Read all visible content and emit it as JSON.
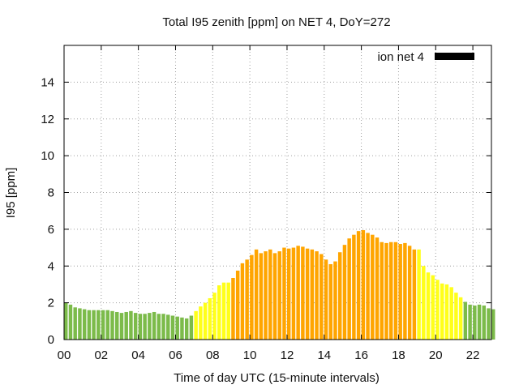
{
  "chart_data": {
    "type": "bar",
    "title": "Total I95 zenith [ppm] on NET 4, DoY=272",
    "xlabel": "Time of day UTC (15-minute intervals)",
    "ylabel": "I95 [ppm]",
    "legend": {
      "label": "ion net 4",
      "color": "#000000",
      "placement": "top-right"
    },
    "xlim": [
      0,
      23
    ],
    "ylim": [
      0,
      16
    ],
    "xtick_labels": [
      "00",
      "02",
      "04",
      "06",
      "08",
      "10",
      "12",
      "14",
      "16",
      "18",
      "20",
      "22"
    ],
    "xtick_values": [
      0,
      2,
      4,
      6,
      8,
      10,
      12,
      14,
      16,
      18,
      20,
      22
    ],
    "ytick_labels": [
      "0",
      "2",
      "4",
      "6",
      "8",
      "10",
      "12",
      "14"
    ],
    "ytick_values": [
      0,
      2,
      4,
      6,
      8,
      10,
      12,
      14
    ],
    "grid": true,
    "bar_interval_hours": 0.25,
    "level_colors": {
      "low": "#7cbb4a",
      "medium": "#ffff1a",
      "high": "#ffa500"
    },
    "levels": [
      "low",
      "low",
      "low",
      "low",
      "low",
      "low",
      "low",
      "low",
      "low",
      "low",
      "low",
      "low",
      "low",
      "low",
      "low",
      "low",
      "low",
      "low",
      "low",
      "low",
      "low",
      "low",
      "low",
      "low",
      "low",
      "low",
      "low",
      "low",
      "medium",
      "medium",
      "medium",
      "medium",
      "medium",
      "medium",
      "medium",
      "medium",
      "high",
      "high",
      "high",
      "high",
      "high",
      "high",
      "high",
      "high",
      "high",
      "high",
      "high",
      "high",
      "high",
      "high",
      "high",
      "high",
      "high",
      "high",
      "high",
      "high",
      "high",
      "high",
      "high",
      "high",
      "high",
      "high",
      "high",
      "high",
      "high",
      "high",
      "high",
      "high",
      "high",
      "high",
      "high",
      "high",
      "high",
      "high",
      "high",
      "high",
      "medium",
      "medium",
      "medium",
      "medium",
      "medium",
      "medium",
      "medium",
      "medium",
      "medium",
      "medium",
      "low",
      "low",
      "low",
      "low",
      "low",
      "low",
      "low"
    ],
    "values": [
      2.0,
      1.9,
      1.75,
      1.7,
      1.65,
      1.6,
      1.6,
      1.6,
      1.6,
      1.6,
      1.55,
      1.5,
      1.45,
      1.5,
      1.55,
      1.45,
      1.4,
      1.4,
      1.45,
      1.5,
      1.4,
      1.4,
      1.35,
      1.3,
      1.25,
      1.2,
      1.15,
      1.3,
      1.55,
      1.8,
      2.0,
      2.25,
      2.55,
      2.95,
      3.1,
      3.1,
      3.35,
      3.75,
      4.15,
      4.35,
      4.6,
      4.9,
      4.7,
      4.8,
      4.9,
      4.7,
      4.8,
      5.0,
      4.95,
      5.0,
      5.1,
      5.05,
      4.95,
      4.9,
      4.8,
      4.65,
      4.35,
      4.1,
      4.25,
      4.75,
      5.15,
      5.5,
      5.7,
      5.9,
      5.95,
      5.8,
      5.7,
      5.55,
      5.3,
      5.25,
      5.3,
      5.3,
      5.2,
      5.25,
      5.1,
      4.9,
      4.9,
      4.0,
      3.65,
      3.5,
      3.25,
      3.05,
      3.0,
      2.85,
      2.55,
      2.3,
      2.05,
      1.9,
      1.85,
      1.9,
      1.85,
      1.7,
      1.65
    ]
  }
}
